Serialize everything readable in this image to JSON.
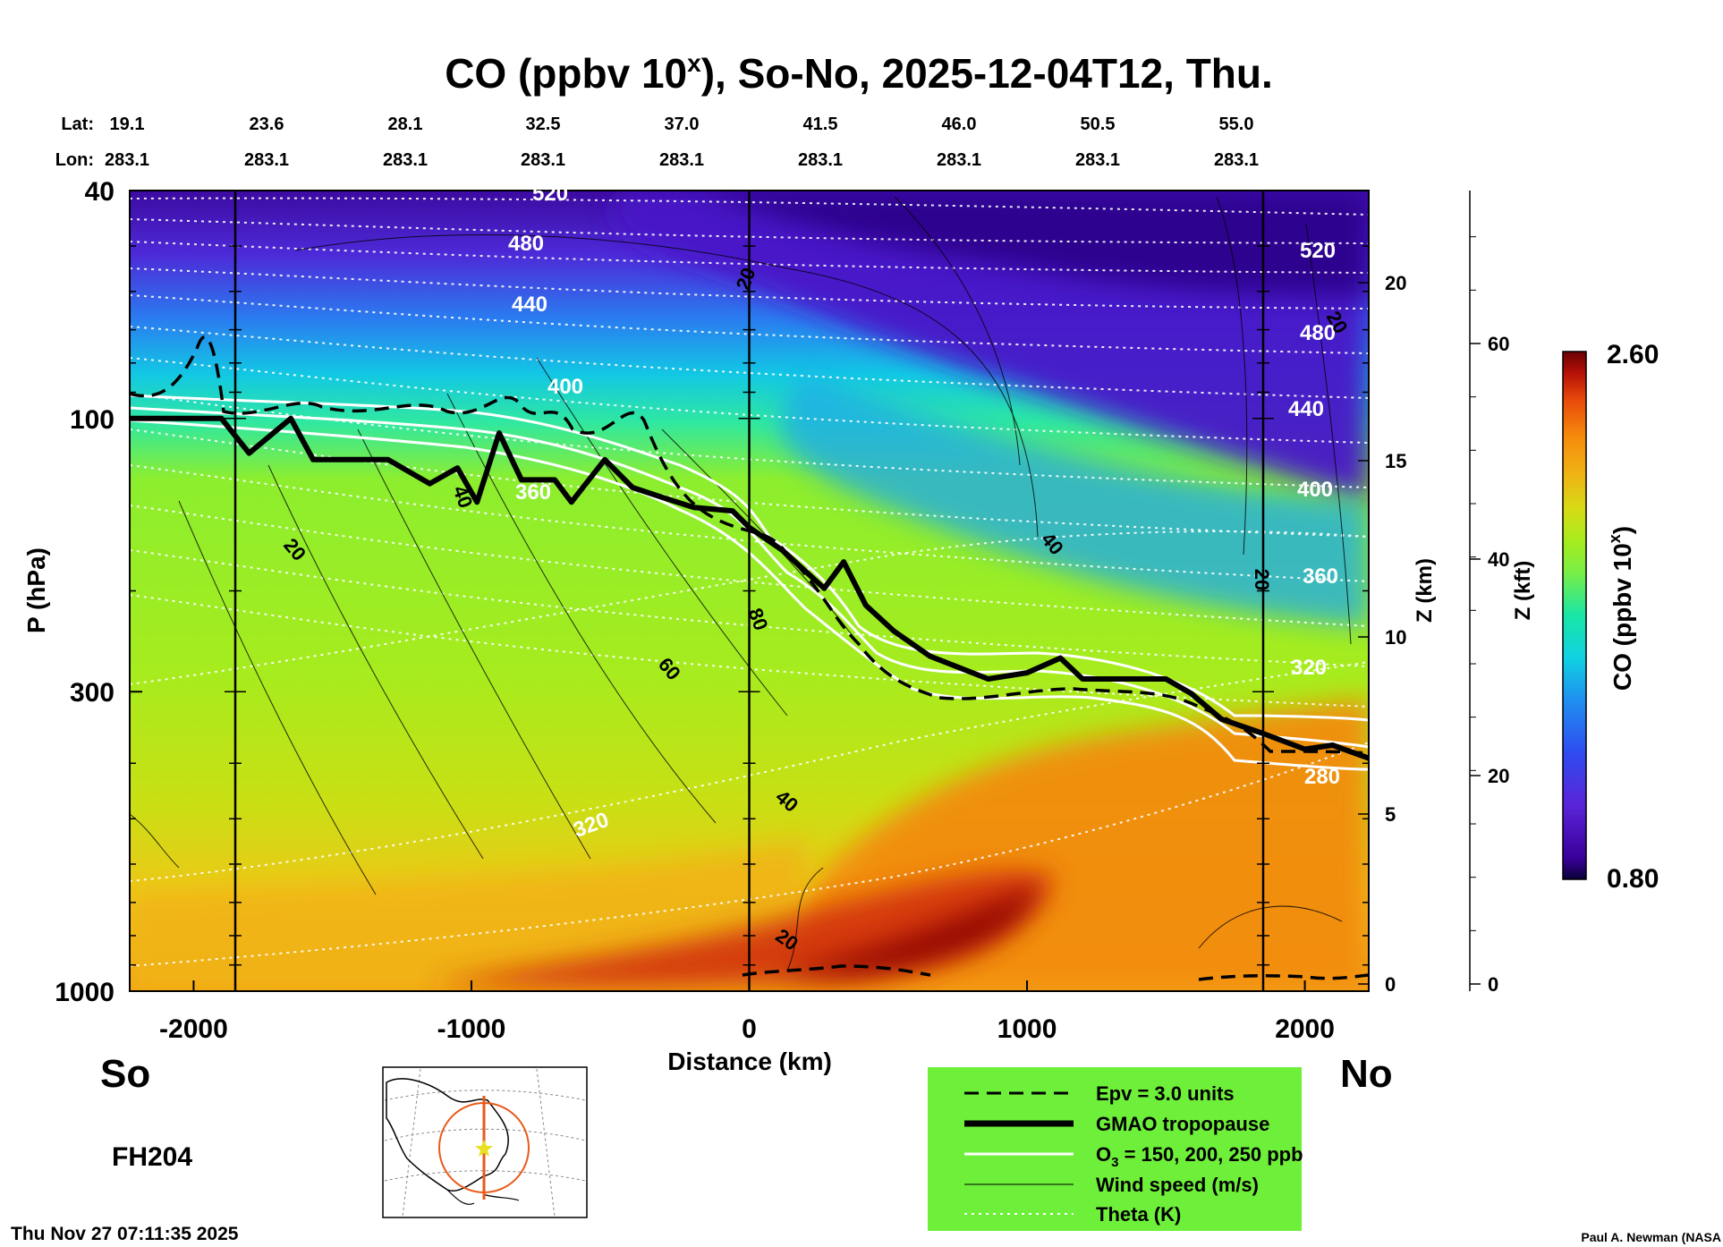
{
  "chart_data": {
    "type": "heatmap",
    "title": "CO (ppbv 10",
    "title_sup": "x",
    "title_rest": "), So-No, 2025-12-04T12, Thu.",
    "lat_label": "Lat:",
    "lon_label": "Lon:",
    "lat_ticks": [
      "19.1",
      "23.6",
      "28.1",
      "32.5",
      "37.0",
      "41.5",
      "46.0",
      "50.5",
      "55.0"
    ],
    "lon_ticks": [
      "283.1",
      "283.1",
      "283.1",
      "283.1",
      "283.1",
      "283.1",
      "283.1",
      "283.1",
      "283.1"
    ],
    "xlabel": "Distance (km)",
    "xlim": [
      -2230,
      2230
    ],
    "x_ticks": [
      -2000,
      -1000,
      0,
      1000,
      2000
    ],
    "x_tick_labels": [
      "-2000",
      "-1000",
      "0",
      "1000",
      "2000"
    ],
    "ylabel": "P (hPa)",
    "ylim": [
      1000,
      40
    ],
    "y_ticks": [
      40,
      100,
      300,
      1000
    ],
    "y_tick_labels": [
      "40",
      "100",
      "300",
      "1000"
    ],
    "z_km_label": "Z (km)",
    "z_km_ticks": [
      "0",
      "5",
      "10",
      "15",
      "20"
    ],
    "z_kft_label": "Z (kft)",
    "z_kft_ticks": [
      "0",
      "20",
      "40",
      "60"
    ],
    "vertical_lines_km": [
      -1850,
      0,
      1850
    ],
    "colorbar": {
      "label": "CO (ppbv 10",
      "label_sup": "x",
      "label_close": ")",
      "min": "0.80",
      "max": "2.60"
    },
    "theta_labels": [
      "520",
      "480",
      "440",
      "400",
      "360",
      "320",
      "520",
      "480",
      "440",
      "400",
      "360",
      "320",
      "280"
    ],
    "wind_labels": [
      "20",
      "20",
      "40",
      "80",
      "60",
      "40",
      "20",
      "40",
      "20",
      "20"
    ],
    "tropopause_points": [
      [
        -2230,
        100
      ],
      [
        -1900,
        100
      ],
      [
        -1800,
        115
      ],
      [
        -1650,
        100
      ],
      [
        -1570,
        118
      ],
      [
        -1300,
        118
      ],
      [
        -1150,
        130
      ],
      [
        -1050,
        122
      ],
      [
        -980,
        140
      ],
      [
        -900,
        106
      ],
      [
        -820,
        128
      ],
      [
        -700,
        128
      ],
      [
        -640,
        140
      ],
      [
        -520,
        118
      ],
      [
        -420,
        132
      ],
      [
        -300,
        138
      ],
      [
        -200,
        143
      ],
      [
        -60,
        145
      ],
      [
        0,
        155
      ],
      [
        120,
        170
      ],
      [
        270,
        198
      ],
      [
        340,
        178
      ],
      [
        420,
        212
      ],
      [
        520,
        235
      ],
      [
        650,
        260
      ],
      [
        860,
        285
      ],
      [
        1000,
        278
      ],
      [
        1120,
        262
      ],
      [
        1200,
        285
      ],
      [
        1350,
        285
      ],
      [
        1500,
        285
      ],
      [
        1590,
        302
      ],
      [
        1700,
        335
      ],
      [
        1850,
        355
      ],
      [
        2000,
        378
      ],
      [
        2100,
        372
      ],
      [
        2230,
        392
      ]
    ]
  },
  "labels": {
    "south": "So",
    "north": "No",
    "forecast_hour": "FH204",
    "timestamp": "Thu Nov 27 07:11:35 2025",
    "credit": "Paul A. Newman (NASA"
  },
  "legend": {
    "items": [
      {
        "label": "Epv = 3.0 units",
        "style": "dashed"
      },
      {
        "label": "GMAO tropopause",
        "style": "thick"
      },
      {
        "label": "O",
        "sub": "3",
        "rest": " = 150, 200, 250 ppb",
        "style": "white"
      },
      {
        "label": "Wind speed (m/s)",
        "style": "thin"
      },
      {
        "label": "Theta (K)",
        "style": "dotted"
      }
    ],
    "background": "#6ef03a"
  },
  "colors": {
    "colorbar_stops": [
      "#0a0038",
      "#3a009a",
      "#5a24d8",
      "#2f4cf0",
      "#1f90f0",
      "#10d2e2",
      "#19e6a6",
      "#78ee48",
      "#a6ec1e",
      "#d6dc16",
      "#f0b214",
      "#f58a0c",
      "#e8480a",
      "#b41008",
      "#6a0202"
    ]
  }
}
